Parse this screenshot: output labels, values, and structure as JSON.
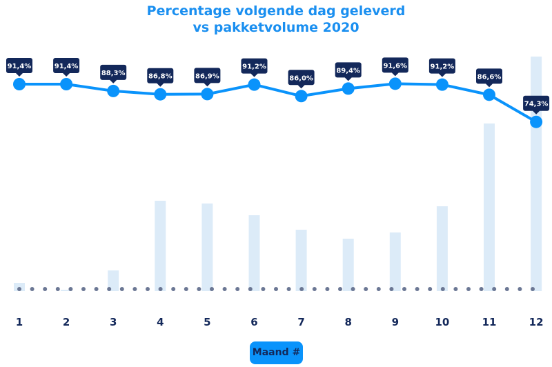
{
  "chart_data": {
    "type": "line",
    "title_line1": "Percentage volgende dag geleverd",
    "title_line2": "vs pakketvolume 2020",
    "xlabel": "Maand #",
    "categories": [
      "1",
      "2",
      "3",
      "4",
      "5",
      "6",
      "7",
      "8",
      "9",
      "10",
      "11",
      "12"
    ],
    "series": [
      {
        "kind": "line",
        "values": [
          91.4,
          91.4,
          88.3,
          86.8,
          86.9,
          91.2,
          86.0,
          89.4,
          91.6,
          91.2,
          86.6,
          74.3
        ],
        "labels": [
          "91,4%",
          "91,4%",
          "88,3%",
          "86,8%",
          "86,9%",
          "91,2%",
          "86,0%",
          "89,4%",
          "91,6%",
          "91,2%",
          "86,6%",
          "74,3%"
        ]
      },
      {
        "kind": "bar",
        "values_relative": [
          12,
          2,
          30,
          131,
          127,
          110,
          89,
          76,
          85,
          123,
          243,
          340
        ]
      }
    ],
    "grid": false,
    "legend": "none",
    "colors": {
      "line": "#0a93fb",
      "bar": "#dcebf8",
      "tooltip": "#13285a",
      "baseline_dots": "#6b7794",
      "title": "#1a8ff0"
    }
  }
}
